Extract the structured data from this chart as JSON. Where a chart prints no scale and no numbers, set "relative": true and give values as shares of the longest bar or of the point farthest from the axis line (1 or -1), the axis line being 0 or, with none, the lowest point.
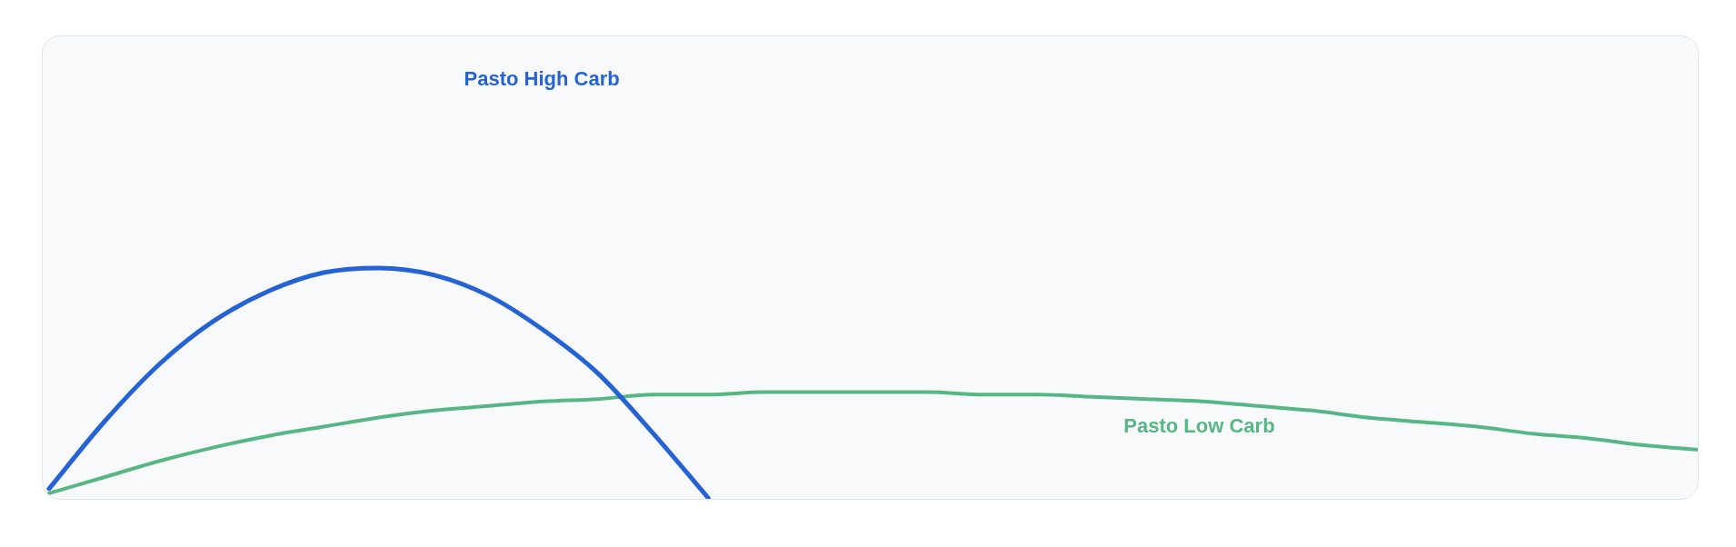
{
  "chart_data": {
    "type": "line",
    "relative": true,
    "categories": [
      null,
      null,
      null,
      null,
      null,
      null,
      null,
      null,
      null,
      null,
      null,
      null,
      null,
      null,
      null,
      null,
      null,
      null,
      null,
      null,
      null,
      null,
      null,
      null,
      null,
      null,
      null,
      null,
      null,
      null,
      null
    ],
    "series": [
      {
        "name": "Pasto High Carb",
        "color": "#2563d4",
        "values": [
          0.04,
          0.33,
          0.58,
          0.77,
          0.9,
          0.98,
          1.0,
          0.97,
          0.88,
          0.73,
          0.54,
          0.28,
          0.0,
          null,
          null,
          null,
          null,
          null,
          null,
          null,
          null,
          null,
          null,
          null,
          null,
          null,
          null,
          null,
          null,
          null,
          null
        ]
      },
      {
        "name": "Pasto Low Carb",
        "color": "#56b785",
        "values": [
          0.02,
          0.09,
          0.16,
          0.22,
          0.27,
          0.31,
          0.35,
          0.38,
          0.4,
          0.42,
          0.43,
          0.45,
          0.45,
          0.46,
          0.46,
          0.46,
          0.46,
          0.45,
          0.45,
          0.44,
          0.43,
          0.42,
          0.4,
          0.38,
          0.35,
          0.33,
          0.31,
          0.28,
          0.26,
          0.23,
          0.21
        ]
      }
    ]
  }
}
